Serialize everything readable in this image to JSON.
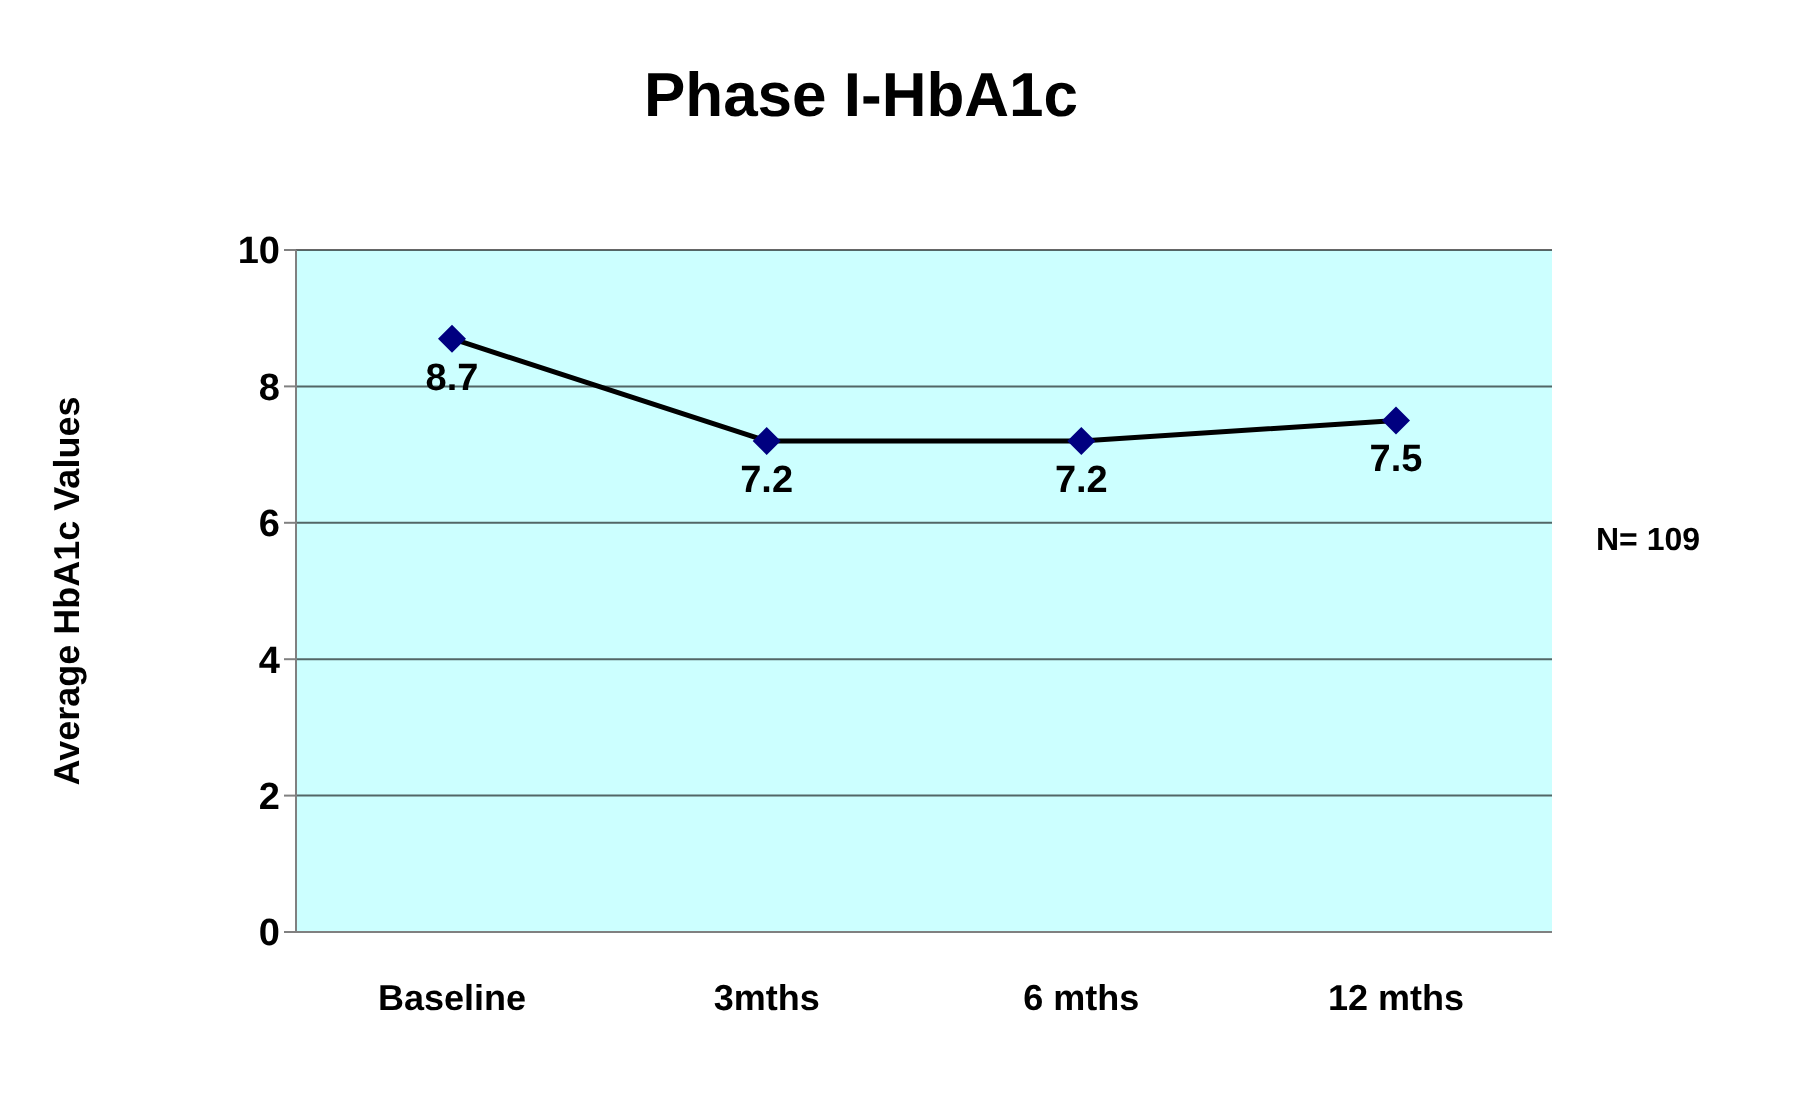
{
  "chart_data": {
    "type": "line",
    "title": "Phase I-HbA1c",
    "ylabel": "Average HbA1c Values",
    "categories": [
      "Baseline",
      "3mths",
      "6 mths",
      "12 mths"
    ],
    "series": [
      {
        "color": "#000080",
        "values": [
          8.7,
          7.2,
          7.2,
          7.5
        ]
      }
    ],
    "ylim": [
      0,
      10
    ],
    "yticks": [
      0,
      2,
      4,
      6,
      8,
      10
    ],
    "grid": "y",
    "marker": "diamond",
    "line_style": "solid",
    "data_labels": true,
    "legend": false,
    "annotations": [
      "N= 109"
    ]
  }
}
